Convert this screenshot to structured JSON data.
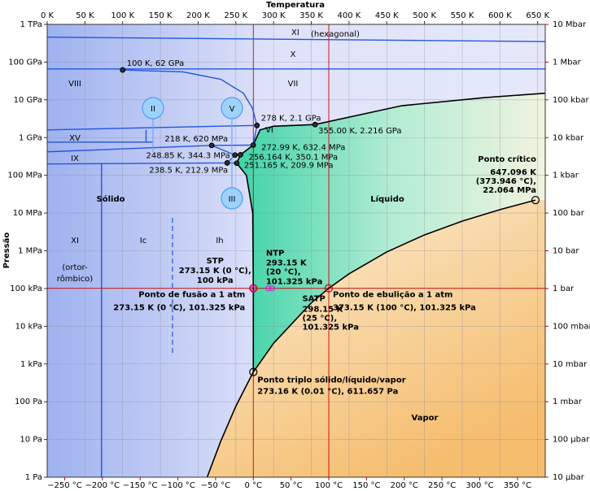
{
  "chart_data": {
    "type": "phase",
    "x_label": "Temperatura",
    "y_label": "Pressão",
    "xlim": [
      0,
      660
    ],
    "xticks": [
      {
        "value": 0,
        "label": "0 K"
      },
      {
        "value": 50,
        "label": "50 K"
      },
      {
        "value": 100,
        "label": "100 K"
      },
      {
        "value": 150,
        "label": "150 K"
      },
      {
        "value": 200,
        "label": "200 K"
      },
      {
        "value": 250,
        "label": "250 K"
      },
      {
        "value": 300,
        "label": "300 K"
      },
      {
        "value": 350,
        "label": "350 K"
      },
      {
        "value": 400,
        "label": "400 K"
      },
      {
        "value": 450,
        "label": "450 K"
      },
      {
        "value": 500,
        "label": "500 K"
      },
      {
        "value": 550,
        "label": "550 K"
      },
      {
        "value": 600,
        "label": "600 K"
      },
      {
        "value": 650,
        "label": "650 K"
      }
    ],
    "x2lim": [
      -273.15,
      386.85
    ],
    "x2ticks": [
      {
        "value": -250,
        "label": "−250 °C"
      },
      {
        "value": -200,
        "label": "−200 °C"
      },
      {
        "value": -150,
        "label": "−150 °C"
      },
      {
        "value": -100,
        "label": "−100 °C"
      },
      {
        "value": -50,
        "label": "−50 °C"
      },
      {
        "value": 0,
        "label": "0 °C"
      },
      {
        "value": 50,
        "label": "50 °C"
      },
      {
        "value": 100,
        "label": "100 °C"
      },
      {
        "value": 150,
        "label": "150 °C"
      },
      {
        "value": 200,
        "label": "200 °C"
      },
      {
        "value": 250,
        "label": "250 °C"
      },
      {
        "value": 300,
        "label": "300 °C"
      },
      {
        "value": 350,
        "label": "350 °C"
      }
    ],
    "x2_color": "#cc0000",
    "ylim": [
      1,
      1000000000000
    ],
    "yscale": "log",
    "yticks": [
      {
        "value": 1,
        "label": "1 Pa"
      },
      {
        "value": 10,
        "label": "10 Pa"
      },
      {
        "value": 100,
        "label": "100 Pa"
      },
      {
        "value": 1000,
        "label": "1 kPa"
      },
      {
        "value": 10000,
        "label": "10 kPa"
      },
      {
        "value": 100000,
        "label": "100 kPa"
      },
      {
        "value": 1000000,
        "label": "1 MPa"
      },
      {
        "value": 10000000,
        "label": "10 MPa"
      },
      {
        "value": 100000000,
        "label": "100 MPa"
      },
      {
        "value": 1000000000,
        "label": "1 GPa"
      },
      {
        "value": 10000000000,
        "label": "10 GPa"
      },
      {
        "value": 100000000000,
        "label": "100 GPa"
      },
      {
        "value": 1000000000000,
        "label": "1 TPa"
      }
    ],
    "y2lim": [
      1e-05,
      10000000
    ],
    "y2ticks": [
      {
        "value": 10000000,
        "label": "10 Mbar"
      },
      {
        "value": 1000000,
        "label": "1 Mbar"
      },
      {
        "value": 100000,
        "label": "100 kbar"
      },
      {
        "value": 10000,
        "label": "10 kbar"
      },
      {
        "value": 1000,
        "label": "1 kbar"
      },
      {
        "value": 100,
        "label": "100 bar"
      },
      {
        "value": 10,
        "label": "10 bar"
      },
      {
        "value": 1,
        "label": "1 bar"
      },
      {
        "value": 0.1,
        "label": "100 mbar"
      },
      {
        "value": 0.01,
        "label": "10 mbar"
      },
      {
        "value": 0.001,
        "label": "1 mbar"
      },
      {
        "value": 0.0001,
        "label": "100 μbar"
      },
      {
        "value": 1e-05,
        "label": "10 μbar"
      }
    ],
    "y2_color": "#cc0000",
    "grid": true,
    "lines": [
      {
        "color": "#000000",
        "x": [
          212,
          230,
          250,
          273.16
        ],
        "y": [
          1,
          9,
          76,
          611.657
        ]
      },
      {
        "color": "#000000",
        "x": [
          273.16,
          300,
          350,
          373.15,
          400,
          450,
          500,
          550,
          600,
          647.096
        ],
        "y": [
          611.657,
          3537,
          41680,
          101325,
          245800,
          932000,
          2637000,
          6117000,
          12340000,
          22064000
        ]
      },
      {
        "color": "#000000",
        "x": [
          273.16,
          273.15,
          272.4,
          264,
          251.165,
          256.164,
          272.99,
          282,
          300,
          355,
          470,
          580,
          660
        ],
        "y": [
          611.657,
          101325,
          10000000,
          100000000,
          209900000,
          350100000,
          632400000,
          1600000000,
          2000000000,
          2216000000,
          7000000000,
          11500000000,
          15000000000
        ]
      },
      {
        "color": "#2255dd",
        "x": [
          0,
          660
        ],
        "y": [
          460000000000,
          350000000000
        ]
      },
      {
        "color": "#2255dd",
        "x": [
          0,
          660
        ],
        "y": [
          66000000000,
          66000000000
        ]
      },
      {
        "color": "#2255dd",
        "x": [
          100,
          180,
          230,
          260,
          272,
          278
        ],
        "y": [
          62000000000,
          55000000000,
          35000000000,
          15000000000,
          6000000000,
          2100000000
        ]
      },
      {
        "color": "#2255dd",
        "x": [
          0,
          278
        ],
        "y": [
          1600000000,
          2100000000
        ]
      },
      {
        "color": "#2255dd",
        "x": [
          278,
          272.99
        ],
        "y": [
          2100000000,
          632400000
        ]
      },
      {
        "color": "#2255dd",
        "x": [
          0,
          140
        ],
        "y": [
          760000000,
          760000000
        ]
      },
      {
        "color": "#2255dd",
        "x": [
          131,
          131
        ],
        "y": [
          1600000000,
          760000000
        ]
      },
      {
        "color": "#2255dd",
        "x": [
          0,
          218,
          272.99
        ],
        "y": [
          420000000,
          620000000,
          632400000
        ]
      },
      {
        "color": "#2255dd",
        "x": [
          218,
          248.85,
          256.164
        ],
        "y": [
          620000000,
          344300000,
          350100000
        ]
      },
      {
        "color": "#2255dd",
        "x": [
          0,
          238.5,
          248.85
        ],
        "y": [
          200000000,
          212900000,
          344300000
        ]
      },
      {
        "color": "#2255dd",
        "x": [
          238.5,
          251.165
        ],
        "y": [
          212900000,
          209900000
        ]
      },
      {
        "color": "#2255dd",
        "x": [
          72,
          72
        ],
        "y": [
          1,
          200000000
        ]
      },
      {
        "color": "#3366ee",
        "dash": true,
        "x": [
          166,
          166
        ],
        "y": [
          7400000,
          1700
        ]
      }
    ],
    "ref_lines": {
      "color": "#cc0000",
      "x": [
        273.15,
        373.15
      ],
      "y": [
        101325
      ]
    },
    "points": [
      {
        "x": 100,
        "y": 62000000000,
        "label": [
          "100 K, 62 GPa"
        ]
      },
      {
        "x": 278,
        "y": 2100000000,
        "label": [
          "278 K, 2.1 GPa"
        ]
      },
      {
        "x": 355,
        "y": 2216000000,
        "label": [
          "355.00 K, 2.216 GPa"
        ]
      },
      {
        "x": 218,
        "y": 620000000,
        "label": [
          "218 K, 620 MPa"
        ]
      },
      {
        "x": 272.99,
        "y": 632400000,
        "label": [
          "272.99 K, 632.4 MPa"
        ]
      },
      {
        "x": 248.85,
        "y": 344300000,
        "label": [
          "248.85 K, 344.3 MPa"
        ]
      },
      {
        "x": 256.164,
        "y": 350100000,
        "label": [
          "256.164 K, 350.1 MPa"
        ]
      },
      {
        "x": 238.5,
        "y": 212900000,
        "label": [
          "238.5 K, 212.9 MPa"
        ]
      },
      {
        "x": 251.165,
        "y": 209900000,
        "label": [
          "251.165 K, 209.9 MPa"
        ]
      },
      {
        "x": 647.096,
        "y": 22064000,
        "label": [
          "Ponto crítico",
          "647.096 K",
          "(373.946 °C),",
          "22.064 MPa"
        ]
      },
      {
        "x": 273.16,
        "y": 611.657,
        "label": [
          "Ponto triplo sólido/líquido/vapor",
          "273.16 K (0.01 °C), 611.657 Pa"
        ]
      },
      {
        "x": 273.15,
        "y": 101325,
        "color": "#cc0000",
        "label": [
          "Ponto de fusão a 1 atm",
          "273.15 K (0 °C), 101.325 kPa"
        ]
      },
      {
        "x": 373.15,
        "y": 101325,
        "color": "#cc0000",
        "label": [
          "Ponto de ebulição a 1 atm",
          "373.15 K (100 °C), 101.325 kPa"
        ]
      },
      {
        "x": 273.15,
        "y": 100000,
        "color": "#dd22dd",
        "label": [
          "STP",
          "273.15 K (0 °C),",
          "100 kPa"
        ]
      },
      {
        "x": 293.15,
        "y": 101325,
        "color": "#dd22dd",
        "label": [
          "NTP",
          "293.15 K",
          "(20 °C),",
          "101.325 kPa"
        ]
      },
      {
        "x": 298.15,
        "y": 101325,
        "color": "#dd22dd",
        "label": [
          "SATP",
          "298.15 K",
          "(25 °C),",
          "101.325 kPa"
        ]
      }
    ],
    "region_labels": [
      {
        "text": "XI",
        "color": "#2233cc"
      },
      {
        "text": "(hexagonal)",
        "color": "#2233cc"
      },
      {
        "text": "X",
        "color": "#2233cc"
      },
      {
        "text": "VIII",
        "color": "#2233cc"
      },
      {
        "text": "VII",
        "color": "#2233cc"
      },
      {
        "text": "XV",
        "color": "#2233cc"
      },
      {
        "text": "VI",
        "color": "#2233cc"
      },
      {
        "text": "IX",
        "color": "#2233cc"
      },
      {
        "text": "Sólido",
        "color": "#1a33cc"
      },
      {
        "text": "Líquido",
        "color": "#159a6a"
      },
      {
        "text": "Vapor",
        "color": "#b07a22"
      },
      {
        "text": "XI",
        "color": "#2233cc"
      },
      {
        "text": "Ic",
        "color": "#2233cc"
      },
      {
        "text": "Ih",
        "color": "#2233cc"
      },
      {
        "text": "(ortor-",
        "color": "#2233cc"
      },
      {
        "text": "rômbico)",
        "color": "#2233cc"
      }
    ],
    "circled": [
      "II",
      "V",
      "III"
    ]
  }
}
